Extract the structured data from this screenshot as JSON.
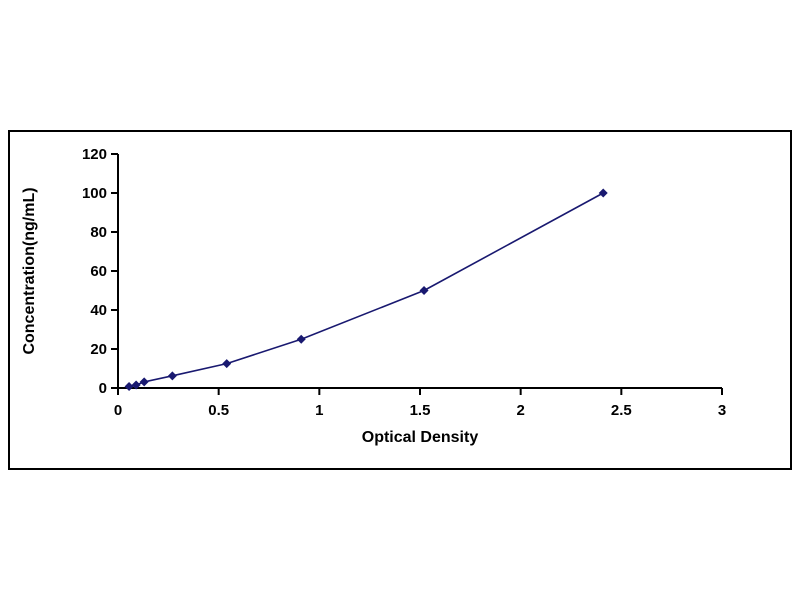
{
  "page": {
    "background": "#ffffff"
  },
  "chart_data": {
    "type": "line",
    "title": "",
    "xlabel": "Optical Density",
    "ylabel": "Concentration(ng/mL)",
    "x": [
      0.055,
      0.09,
      0.13,
      0.27,
      0.54,
      0.91,
      1.52,
      2.41
    ],
    "y": [
      0.78,
      1.56,
      3.12,
      6.25,
      12.5,
      25,
      50,
      100
    ],
    "xlim": [
      0,
      3
    ],
    "ylim": [
      0,
      120
    ],
    "xticks": [
      0,
      0.5,
      1,
      1.5,
      2,
      2.5,
      3
    ],
    "yticks": [
      0,
      20,
      40,
      60,
      80,
      100,
      120
    ],
    "grid": false,
    "legend": "none",
    "line_color": "#191970",
    "marker": "diamond",
    "marker_color": "#191970",
    "axis_color": "#000000"
  }
}
